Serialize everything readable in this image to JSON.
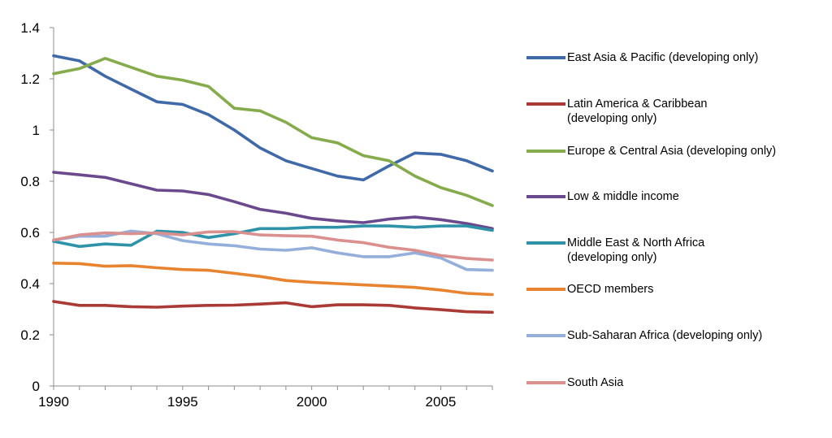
{
  "chart_data": {
    "type": "line",
    "title": "",
    "xlabel": "",
    "ylabel": "",
    "xlim": [
      1990,
      2007
    ],
    "ylim": [
      0,
      1.4
    ],
    "x": [
      1990,
      1991,
      1992,
      1993,
      1994,
      1995,
      1996,
      1997,
      1998,
      1999,
      2000,
      2001,
      2002,
      2003,
      2004,
      2005,
      2006,
      2007
    ],
    "x_ticks": [
      "1990",
      "1995",
      "2000",
      "2005"
    ],
    "y_ticks": [
      "0",
      "0.2",
      "0.4",
      "0.6",
      "0.8",
      "1",
      "1.2",
      "1.4"
    ],
    "grid": false,
    "legend_position": "right",
    "series": [
      {
        "name": "East Asia & Pacific (developing only)",
        "color": "#3F6AA7",
        "values": [
          1.29,
          1.27,
          1.21,
          1.16,
          1.11,
          1.1,
          1.06,
          1.0,
          0.93,
          0.88,
          0.85,
          0.82,
          0.805,
          0.86,
          0.91,
          0.905,
          0.88,
          0.84
        ]
      },
      {
        "name": "Latin America & Caribbean (developing only)",
        "color": "#A93A35",
        "values": [
          0.33,
          0.315,
          0.315,
          0.31,
          0.308,
          0.312,
          0.315,
          0.316,
          0.32,
          0.325,
          0.31,
          0.317,
          0.317,
          0.315,
          0.305,
          0.298,
          0.29,
          0.288
        ]
      },
      {
        "name": "Europe & Central Asia (developing only)",
        "color": "#86AB4C",
        "values": [
          1.22,
          1.24,
          1.28,
          1.245,
          1.21,
          1.195,
          1.17,
          1.085,
          1.075,
          1.03,
          0.97,
          0.95,
          0.9,
          0.88,
          0.82,
          0.775,
          0.745,
          0.705
        ]
      },
      {
        "name": "Low & middle income",
        "color": "#6A4A8C",
        "values": [
          0.835,
          0.825,
          0.815,
          0.79,
          0.765,
          0.762,
          0.748,
          0.72,
          0.69,
          0.675,
          0.655,
          0.645,
          0.638,
          0.652,
          0.66,
          0.65,
          0.635,
          0.615
        ]
      },
      {
        "name": "Middle East & North Africa (developing only)",
        "color": "#2E93A8",
        "values": [
          0.565,
          0.545,
          0.555,
          0.55,
          0.605,
          0.6,
          0.58,
          0.595,
          0.615,
          0.615,
          0.62,
          0.62,
          0.625,
          0.625,
          0.62,
          0.625,
          0.625,
          0.608
        ]
      },
      {
        "name": "OECD members",
        "color": "#E8832F",
        "values": [
          0.48,
          0.478,
          0.468,
          0.47,
          0.462,
          0.455,
          0.452,
          0.44,
          0.428,
          0.412,
          0.405,
          0.4,
          0.395,
          0.39,
          0.385,
          0.375,
          0.362,
          0.357
        ]
      },
      {
        "name": "Sub-Saharan Africa (developing only)",
        "color": "#94AFDA",
        "values": [
          0.57,
          0.585,
          0.585,
          0.605,
          0.595,
          0.568,
          0.555,
          0.548,
          0.535,
          0.53,
          0.54,
          0.52,
          0.505,
          0.505,
          0.52,
          0.5,
          0.455,
          0.452
        ]
      },
      {
        "name": "South Asia",
        "color": "#D9908F",
        "values": [
          0.57,
          0.59,
          0.598,
          0.595,
          0.598,
          0.59,
          0.602,
          0.603,
          0.59,
          0.587,
          0.585,
          0.57,
          0.56,
          0.542,
          0.53,
          0.51,
          0.498,
          0.492
        ]
      }
    ]
  }
}
